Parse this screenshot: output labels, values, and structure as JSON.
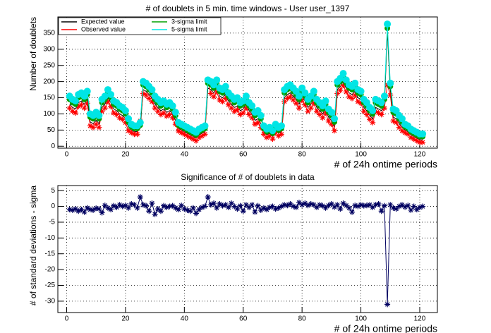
{
  "chart_data": [
    {
      "type": "line",
      "title": "# of doublets in 5 min. time windows - User user_1397",
      "xlabel": "# of 24h ontime periods",
      "ylabel": "Number of doublets",
      "x": [
        1,
        2,
        3,
        4,
        5,
        6,
        7,
        8,
        9,
        10,
        11,
        12,
        13,
        14,
        15,
        16,
        17,
        18,
        19,
        20,
        21,
        22,
        23,
        24,
        25,
        26,
        27,
        28,
        29,
        30,
        31,
        32,
        33,
        34,
        35,
        36,
        37,
        38,
        39,
        40,
        41,
        42,
        43,
        44,
        45,
        46,
        47,
        48,
        49,
        50,
        51,
        52,
        53,
        54,
        55,
        56,
        57,
        58,
        59,
        60,
        61,
        62,
        63,
        64,
        65,
        66,
        67,
        68,
        69,
        70,
        71,
        72,
        73,
        74,
        75,
        76,
        77,
        78,
        79,
        80,
        81,
        82,
        83,
        84,
        85,
        86,
        87,
        88,
        89,
        90,
        91,
        92,
        93,
        94,
        95,
        96,
        97,
        98,
        99,
        100,
        101,
        102,
        103,
        104,
        105,
        106,
        107,
        108,
        109,
        110,
        111,
        112,
        113,
        114,
        115,
        116,
        117,
        118,
        119,
        120,
        121
      ],
      "series": [
        {
          "name": "Expected value",
          "color": "#000000",
          "marker": "none",
          "values": [
            130,
            120,
            115,
            135,
            140,
            130,
            145,
            75,
            70,
            80,
            70,
            120,
            130,
            150,
            135,
            115,
            110,
            100,
            95,
            85,
            60,
            50,
            45,
            45,
            55,
            175,
            170,
            160,
            150,
            130,
            120,
            110,
            115,
            105,
            110,
            100,
            80,
            55,
            50,
            45,
            40,
            35,
            30,
            25,
            35,
            40,
            45,
            180,
            175,
            165,
            180,
            155,
            150,
            160,
            140,
            130,
            120,
            125,
            110,
            115,
            130,
            110,
            100,
            80,
            85,
            70,
            45,
            35,
            40,
            30,
            50,
            40,
            45,
            150,
            160,
            165,
            155,
            145,
            130,
            155,
            140,
            120,
            130,
            145,
            120,
            110,
            100,
            115,
            90,
            80,
            60,
            175,
            185,
            200,
            180,
            165,
            160,
            170,
            150,
            145,
            120,
            110,
            95,
            85,
            120,
            115,
            110,
            130,
            355,
            170,
            90,
            85,
            70,
            60,
            50,
            45,
            35,
            30,
            25,
            20,
            20
          ]
        },
        {
          "name": "Observed value",
          "color": "#ff0000",
          "marker": "star",
          "values": [
            118,
            108,
            103,
            123,
            128,
            118,
            133,
            63,
            58,
            68,
            58,
            108,
            118,
            138,
            123,
            103,
            98,
            88,
            83,
            73,
            48,
            42,
            37,
            37,
            78,
            163,
            158,
            148,
            138,
            118,
            108,
            98,
            103,
            93,
            98,
            88,
            68,
            47,
            42,
            37,
            32,
            27,
            22,
            17,
            27,
            32,
            37,
            200,
            163,
            153,
            168,
            143,
            138,
            148,
            128,
            118,
            108,
            113,
            98,
            103,
            118,
            98,
            88,
            68,
            73,
            58,
            37,
            27,
            32,
            22,
            42,
            32,
            37,
            138,
            148,
            153,
            143,
            133,
            118,
            143,
            128,
            108,
            118,
            133,
            108,
            98,
            88,
            103,
            78,
            68,
            48,
            163,
            173,
            188,
            168,
            153,
            148,
            158,
            138,
            133,
            108,
            98,
            83,
            73,
            108,
            103,
            98,
            118,
            190,
            158,
            78,
            73,
            58,
            48,
            42,
            37,
            27,
            22,
            17,
            12,
            12
          ]
        },
        {
          "name": "3-sigma limit",
          "color": "#00a000",
          "marker": "circle",
          "values": [
            145,
            135,
            130,
            150,
            155,
            145,
            160,
            90,
            85,
            95,
            85,
            135,
            145,
            165,
            150,
            130,
            125,
            115,
            110,
            100,
            75,
            60,
            55,
            55,
            65,
            190,
            185,
            175,
            165,
            145,
            135,
            125,
            130,
            120,
            125,
            115,
            95,
            65,
            60,
            55,
            50,
            45,
            40,
            35,
            45,
            50,
            55,
            195,
            190,
            180,
            195,
            170,
            165,
            175,
            155,
            145,
            135,
            140,
            125,
            130,
            145,
            125,
            115,
            95,
            100,
            85,
            55,
            45,
            50,
            40,
            60,
            50,
            55,
            165,
            175,
            180,
            170,
            160,
            145,
            170,
            155,
            135,
            145,
            160,
            135,
            125,
            115,
            130,
            105,
            95,
            75,
            190,
            200,
            215,
            195,
            180,
            175,
            185,
            165,
            160,
            135,
            125,
            110,
            100,
            135,
            130,
            125,
            145,
            365,
            185,
            105,
            100,
            85,
            75,
            60,
            55,
            45,
            40,
            35,
            30,
            30
          ]
        },
        {
          "name": "5-sigma limit",
          "color": "#00e5e5",
          "marker": "bigcircle",
          "values": [
            155,
            145,
            140,
            160,
            165,
            155,
            170,
            100,
            95,
            105,
            95,
            145,
            155,
            175,
            160,
            140,
            135,
            125,
            120,
            110,
            85,
            68,
            63,
            63,
            73,
            200,
            195,
            185,
            175,
            155,
            145,
            135,
            140,
            130,
            135,
            125,
            105,
            73,
            68,
            63,
            58,
            53,
            48,
            43,
            53,
            58,
            63,
            205,
            200,
            190,
            205,
            180,
            175,
            185,
            165,
            155,
            145,
            150,
            135,
            140,
            155,
            135,
            125,
            105,
            110,
            95,
            63,
            53,
            58,
            48,
            68,
            58,
            63,
            175,
            185,
            190,
            180,
            170,
            155,
            180,
            165,
            145,
            155,
            170,
            145,
            135,
            125,
            140,
            115,
            105,
            85,
            200,
            210,
            225,
            205,
            190,
            185,
            195,
            175,
            170,
            145,
            135,
            120,
            110,
            145,
            140,
            135,
            155,
            378,
            195,
            115,
            110,
            95,
            85,
            68,
            63,
            53,
            48,
            43,
            38,
            38
          ]
        }
      ],
      "xlim": [
        -3,
        126
      ],
      "ylim": [
        -6,
        400
      ],
      "xticks": [
        0,
        20,
        40,
        60,
        80,
        100,
        120
      ],
      "yticks": [
        0,
        50,
        100,
        150,
        200,
        250,
        300,
        350
      ],
      "grid": true,
      "legend": "top-left"
    },
    {
      "type": "line",
      "title": "Significance of # of doublets in data",
      "xlabel": "# of 24h ontime periods",
      "ylabel": "# of standard deviations - sigma",
      "x": [
        1,
        2,
        3,
        4,
        5,
        6,
        7,
        8,
        9,
        10,
        11,
        12,
        13,
        14,
        15,
        16,
        17,
        18,
        19,
        20,
        21,
        22,
        23,
        24,
        25,
        26,
        27,
        28,
        29,
        30,
        31,
        32,
        33,
        34,
        35,
        36,
        37,
        38,
        39,
        40,
        41,
        42,
        43,
        44,
        45,
        46,
        47,
        48,
        49,
        50,
        51,
        52,
        53,
        54,
        55,
        56,
        57,
        58,
        59,
        60,
        61,
        62,
        63,
        64,
        65,
        66,
        67,
        68,
        69,
        70,
        71,
        72,
        73,
        74,
        75,
        76,
        77,
        78,
        79,
        80,
        81,
        82,
        83,
        84,
        85,
        86,
        87,
        88,
        89,
        90,
        91,
        92,
        93,
        94,
        95,
        96,
        97,
        98,
        99,
        100,
        101,
        102,
        103,
        104,
        105,
        106,
        107,
        108,
        109,
        110,
        111,
        112,
        113,
        114,
        115,
        116,
        117,
        118,
        119,
        120,
        121
      ],
      "series": [
        {
          "color": "#000060",
          "marker": "star",
          "values": [
            -1,
            -1.2,
            -0.8,
            -1.5,
            -1,
            -1.8,
            -0.5,
            -1,
            -1.2,
            -0.6,
            -0.8,
            -2,
            0.3,
            -0.5,
            -1,
            0.2,
            -0.3,
            0.5,
            0,
            0.3,
            -0.5,
            0.8,
            0.5,
            -0.5,
            3,
            0.5,
            0.2,
            -1.5,
            1,
            -2.5,
            -0.8,
            -1.5,
            0.2,
            -0.3,
            0,
            0.2,
            -0.5,
            -1,
            0.3,
            -0.8,
            -1.2,
            -1.5,
            -0.5,
            -2.2,
            -1,
            -0.3,
            0,
            3,
            0.5,
            1,
            -0.5,
            0.8,
            0.2,
            0.5,
            -0.3,
            1,
            0,
            -0.8,
            0.2,
            -1.5,
            0.5,
            -0.3,
            0.5,
            -1.8,
            0.2,
            -1.2,
            -0.5,
            -1,
            -0.3,
            0,
            -0.8,
            -0.5,
            0,
            0.5,
            0.3,
            0.8,
            0,
            -0.3,
            1.2,
            0.5,
            1,
            0.3,
            0.8,
            0.5,
            -0.3,
            0.5,
            0.2,
            -0.5,
            0.3,
            0.8,
            -0.2,
            0.5,
            -0.8,
            1,
            0.3,
            -0.5,
            -1.8,
            0.3,
            0,
            0.5,
            0.2,
            0.3,
            0.5,
            -0.3,
            0.5,
            0.8,
            -1.5,
            0.2,
            -31,
            0.5,
            -0.5,
            -0.8,
            0,
            0.5,
            -0.2,
            0.3,
            -1.2,
            0,
            -1,
            -0.3,
            0
          ]
        }
      ],
      "xlim": [
        -3,
        126
      ],
      "ylim": [
        -33.6,
        6.6
      ],
      "xticks": [
        0,
        20,
        40,
        60,
        80,
        100,
        120
      ],
      "yticks": [
        5,
        0,
        -5,
        -10,
        -15,
        -20,
        -25,
        -30
      ],
      "grid": true
    }
  ]
}
